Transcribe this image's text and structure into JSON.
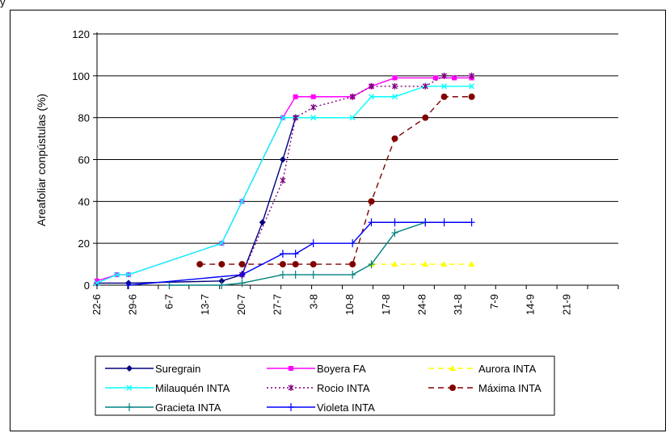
{
  "page": {
    "top_text": "y"
  },
  "chart_data": {
    "type": "line",
    "title": "",
    "xlabel": "",
    "ylabel": "Areafoliar conpústulas (%)",
    "ylim": [
      0,
      120
    ],
    "yticks": [
      "0",
      "20",
      "40",
      "60",
      "80",
      "100",
      "120"
    ],
    "grid": "horizontal",
    "legend_position": "bottom",
    "tick_labels": [
      "22-6",
      "29-6",
      "6-7",
      "13-7",
      "20-7",
      "27-7",
      "3-8",
      "10-8",
      "17-8",
      "24-8",
      "31-8",
      "7-9",
      "14-9",
      "21-9"
    ],
    "x": [
      0,
      1.95,
      3.1,
      7.1,
      10.1,
      12.25,
      14.25,
      16.25,
      18.25,
      19.5,
      21.25,
      23.1,
      25.1,
      26.95,
      29.25,
      30.25,
      32.25,
      33.25,
      34.1,
      35.1,
      36.8,
      38.8,
      42.6,
      45.1,
      48.1,
      51.2
    ],
    "series": [
      {
        "name": "Suregrain",
        "color": "#000080",
        "dash": "solid",
        "marker": "diamond",
        "values": [
          1,
          null,
          1,
          null,
          null,
          2,
          5,
          30,
          60,
          80,
          null,
          null,
          null,
          null,
          null,
          null,
          null,
          null,
          null,
          null,
          null,
          null,
          null,
          null,
          null,
          null
        ]
      },
      {
        "name": "Boyera FA",
        "color": "#ff00ff",
        "dash": "solid",
        "marker": "square",
        "values": [
          2,
          5,
          5,
          null,
          null,
          20,
          40,
          null,
          80,
          90,
          90,
          null,
          90,
          95,
          99,
          null,
          null,
          99,
          null,
          99,
          99,
          null,
          null,
          null,
          null,
          null
        ]
      },
      {
        "name": "Aurora INTA",
        "color": "#ffff00",
        "dash": "dash",
        "marker": "triangle",
        "values": [
          null,
          null,
          null,
          null,
          null,
          null,
          null,
          null,
          null,
          null,
          null,
          null,
          null,
          10,
          10,
          null,
          10,
          null,
          10,
          null,
          10,
          null,
          null,
          null,
          null,
          null
        ]
      },
      {
        "name": "Milauquén INTA",
        "color": "#00ffff",
        "dash": "solid",
        "marker": "x",
        "values": [
          1,
          5,
          5,
          null,
          null,
          20,
          40,
          null,
          80,
          80,
          80,
          null,
          80,
          90,
          90,
          null,
          95,
          null,
          95,
          null,
          95,
          null,
          null,
          null,
          null,
          null
        ]
      },
      {
        "name": "Rocio INTA",
        "color": "#800080",
        "dash": "dot",
        "marker": "asterisk",
        "values": [
          null,
          null,
          null,
          null,
          null,
          null,
          5,
          null,
          50,
          80,
          85,
          null,
          90,
          95,
          95,
          null,
          95,
          null,
          100,
          null,
          100,
          null,
          null,
          null,
          null,
          null
        ]
      },
      {
        "name": "Máxima INTA",
        "color": "#800000",
        "dash": "dash",
        "marker": "circle",
        "values": [
          null,
          null,
          null,
          null,
          10,
          10,
          10,
          null,
          10,
          10,
          10,
          null,
          10,
          40,
          70,
          null,
          80,
          null,
          90,
          null,
          90,
          null,
          null,
          null,
          null,
          null
        ]
      },
      {
        "name": "Gracieta INTA",
        "color": "#008080",
        "dash": "solid",
        "marker": "plus",
        "values": [
          null,
          null,
          null,
          0,
          null,
          0,
          1,
          null,
          5,
          5,
          5,
          null,
          5,
          10,
          25,
          null,
          30,
          null,
          null,
          null,
          null,
          null,
          null,
          null,
          null,
          null
        ]
      },
      {
        "name": "Violeta INTA",
        "color": "#0000ff",
        "dash": "solid",
        "marker": "plus",
        "values": [
          null,
          null,
          0,
          null,
          null,
          null,
          5,
          null,
          15,
          15,
          20,
          null,
          20,
          30,
          30,
          null,
          30,
          null,
          30,
          null,
          30,
          null,
          null,
          null,
          null,
          null
        ]
      }
    ]
  }
}
